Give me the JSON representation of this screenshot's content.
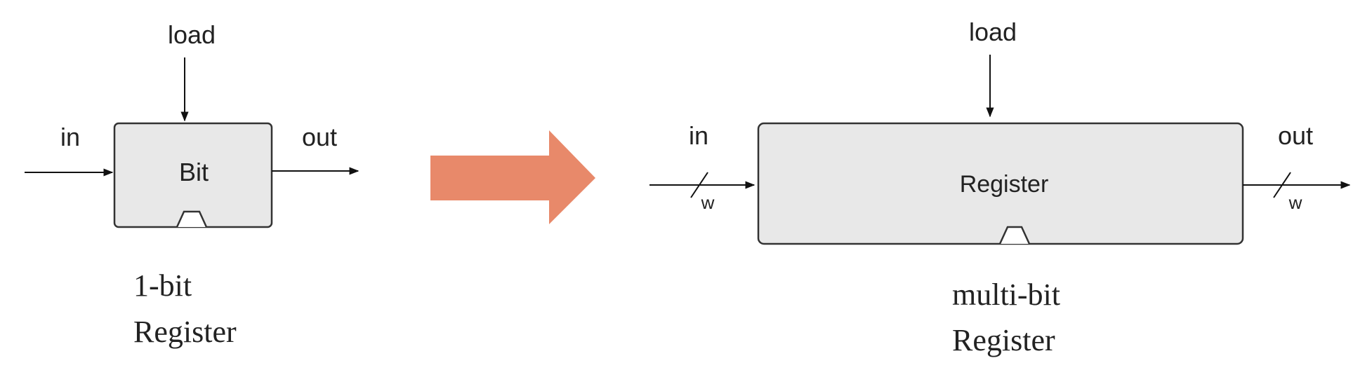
{
  "left_diagram": {
    "load_label": "load",
    "in_label": "in",
    "out_label": "out",
    "box_label": "Bit",
    "caption_line1": "1-bit",
    "caption_line2": "Register"
  },
  "transition_arrow": {
    "color": "#E8896A"
  },
  "right_diagram": {
    "load_label": "load",
    "in_label": "in",
    "out_label": "out",
    "box_label": "Register",
    "in_width_label": "w",
    "out_width_label": "w",
    "caption_line1": "multi-bit",
    "caption_line2": "Register"
  },
  "colors": {
    "box_fill": "#E8E8E8",
    "box_stroke": "#333333",
    "wire": "#111111"
  }
}
